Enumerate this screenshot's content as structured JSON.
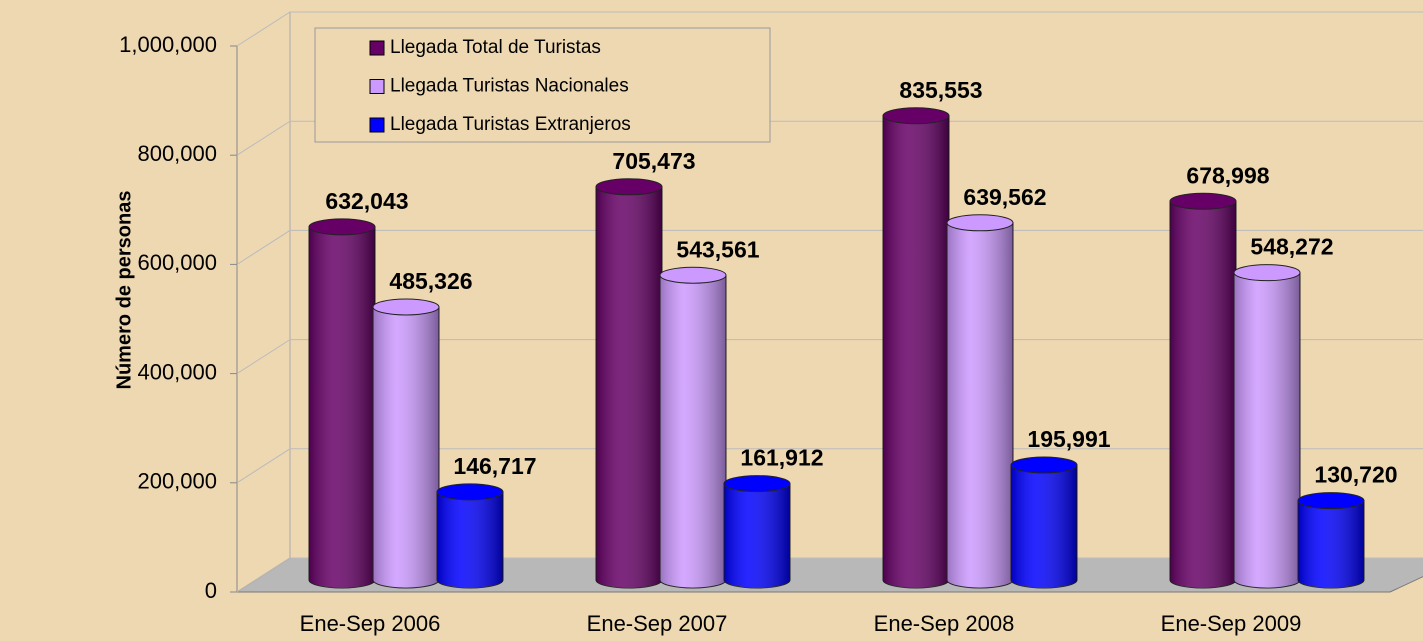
{
  "chart_data": {
    "type": "bar3d",
    "categories": [
      "Ene-Sep 2006",
      "Ene-Sep 2007",
      "Ene-Sep 2008",
      "Ene-Sep 2009"
    ],
    "series": [
      {
        "name": "Llegada Total de Turistas",
        "color": "#660066",
        "values": [
          632043,
          705473,
          835553,
          678998
        ],
        "value_labels": [
          "632,043",
          "705,473",
          "835,553",
          "678,998"
        ]
      },
      {
        "name": "Llegada Turistas Nacionales",
        "color": "#cc99ff",
        "values": [
          485326,
          543561,
          639562,
          548272
        ],
        "value_labels": [
          "485,326",
          "543,561",
          "639,562",
          "548,272"
        ]
      },
      {
        "name": "Llegada Turistas Extranjeros",
        "color": "#0000ff",
        "values": [
          146717,
          161912,
          195991,
          130720
        ],
        "value_labels": [
          "146,717",
          "161,912",
          "195,991",
          "130,720"
        ]
      }
    ],
    "y_label": "Número de personas",
    "ylim": [
      0,
      1000000
    ],
    "yticks": [
      0,
      {
        "value": 200000,
        "label": "200,000"
      },
      {
        "value": 400000,
        "label": "400,000"
      },
      {
        "value": 600000,
        "label": "600,000"
      },
      {
        "value": 800000,
        "label": "800,000"
      },
      {
        "value": 1000000,
        "label": "1,000,000"
      }
    ],
    "grid": true
  }
}
